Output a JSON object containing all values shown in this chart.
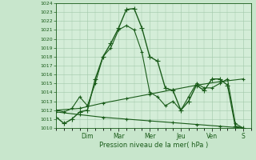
{
  "xlabel": "Pression niveau de la mer( hPa )",
  "background_color": "#c8e6cc",
  "plot_bg_color": "#d4edd8",
  "grid_color": "#a0c8a8",
  "line_color": "#1a5c1a",
  "ylim": [
    1010,
    1024
  ],
  "yticks": [
    1010,
    1011,
    1012,
    1013,
    1014,
    1015,
    1016,
    1017,
    1018,
    1019,
    1020,
    1021,
    1022,
    1023,
    1024
  ],
  "day_labels": [
    "Dim",
    "Mar",
    "Mer",
    "Jeu",
    "Ven",
    "S"
  ],
  "day_positions": [
    8,
    16,
    24,
    32,
    40,
    48
  ],
  "xlim": [
    0,
    50
  ],
  "series": [
    {
      "x": [
        0,
        2,
        4,
        6,
        8,
        10,
        12,
        14,
        16,
        18,
        20,
        22,
        24,
        26,
        28,
        30,
        32,
        34,
        36,
        38,
        40,
        42,
        44,
        46,
        48
      ],
      "y": [
        1011.2,
        1010.5,
        1011.0,
        1011.8,
        1012.0,
        1015.5,
        1018.0,
        1019.5,
        1021.2,
        1023.3,
        1023.4,
        1021.2,
        1018.0,
        1017.5,
        1014.5,
        1014.2,
        1012.0,
        1013.0,
        1014.8,
        1014.2,
        1015.5,
        1015.5,
        1014.8,
        1010.2,
        1010.0
      ],
      "marker": "+",
      "linewidth": 1.0,
      "markersize": 4.0
    },
    {
      "x": [
        0,
        2,
        4,
        6,
        8,
        10,
        12,
        14,
        16,
        18,
        20,
        22,
        24,
        26,
        28,
        30,
        32,
        34,
        36,
        38,
        40,
        42,
        44,
        46,
        48
      ],
      "y": [
        1012.0,
        1011.8,
        1012.2,
        1013.5,
        1012.5,
        1015.0,
        1018.0,
        1019.0,
        1021.0,
        1021.5,
        1021.0,
        1018.5,
        1014.0,
        1013.5,
        1012.5,
        1013.0,
        1012.0,
        1013.5,
        1015.0,
        1014.5,
        1014.5,
        1015.0,
        1015.5,
        1010.5,
        1010.0
      ],
      "marker": "+",
      "linewidth": 0.8,
      "markersize": 3.5
    },
    {
      "x": [
        0,
        6,
        12,
        18,
        24,
        30,
        36,
        42,
        48
      ],
      "y": [
        1012.0,
        1012.2,
        1012.8,
        1013.3,
        1013.8,
        1014.3,
        1014.8,
        1015.2,
        1015.5
      ],
      "marker": "+",
      "linewidth": 0.8,
      "markersize": 3.0
    },
    {
      "x": [
        0,
        6,
        12,
        18,
        24,
        30,
        36,
        42,
        48
      ],
      "y": [
        1011.8,
        1011.5,
        1011.2,
        1011.0,
        1010.8,
        1010.6,
        1010.4,
        1010.2,
        1010.0
      ],
      "marker": "+",
      "linewidth": 0.8,
      "markersize": 3.0
    }
  ]
}
